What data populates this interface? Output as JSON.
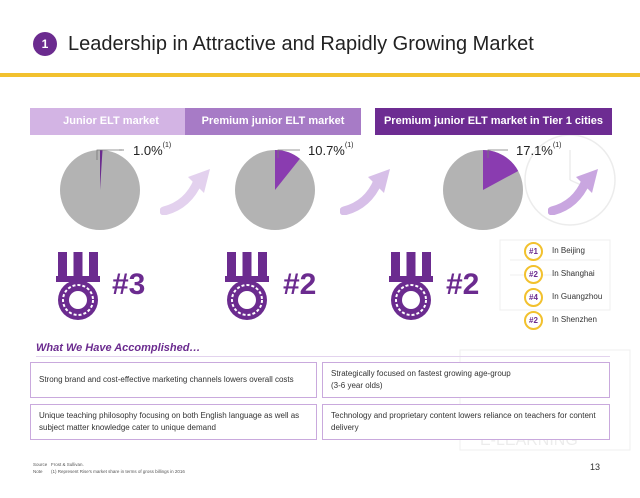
{
  "header": {
    "section_number": "1",
    "title": "Leadership in Attractive and Rapidly Growing Market"
  },
  "segments": [
    {
      "label": "Junior ELT market",
      "share_pct": 1.0,
      "share_label": "1.0%",
      "note_marker": "(1)",
      "rank": "#3"
    },
    {
      "label": "Premium junior ELT market",
      "share_pct": 10.7,
      "share_label": "10.7%",
      "note_marker": "(1)",
      "rank": "#2"
    },
    {
      "label": "Premium junior ELT market in Tier 1 cities",
      "share_pct": 17.1,
      "share_label": "17.1%",
      "note_marker": "(1)",
      "rank": "#2"
    }
  ],
  "cities": [
    {
      "rank": "#1",
      "name": "In Beijing"
    },
    {
      "rank": "#2",
      "name": "In Shanghai"
    },
    {
      "rank": "#4",
      "name": "In Guangzhou"
    },
    {
      "rank": "#2",
      "name": "In Shenzhen"
    }
  ],
  "accomplishments": {
    "title": "What We Have Accomplished…",
    "items": [
      "Strong brand and cost-effective marketing channels lowers overall costs",
      "Strategically focused on fastest growing age-group\n(3-6 year olds)",
      "Unique teaching philosophy focusing on both English language as well as subject matter knowledge cater to unique demand",
      "Technology and proprietary content lowers reliance on teachers for content delivery"
    ]
  },
  "footnotes": {
    "source_key": "Source",
    "source_text": "Frost & Sullivan.",
    "note_key": "Note",
    "note_text": "(1) Represent Rise's market share in terms of gross billings in 2016"
  },
  "page_number": "13",
  "colors": {
    "purple_dark": "#6b2b8f",
    "purple_mid": "#a77bc6",
    "purple_light": "#d3b4e4",
    "gold": "#f2c12e",
    "pie_grey": "#b3b3b3"
  },
  "background_watermark": "E-LEARNING"
}
